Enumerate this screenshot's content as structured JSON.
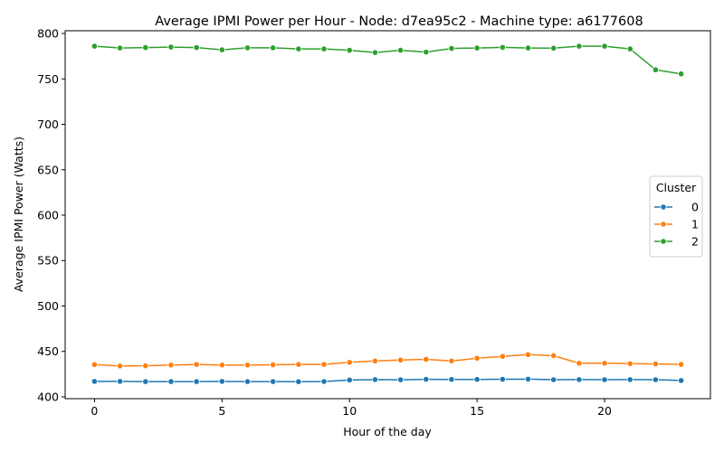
{
  "chart_data": {
    "type": "line",
    "title": "Average IPMI Power per Hour - Node: d7ea95c2 - Machine type: a6177608",
    "xlabel": "Hour of the day",
    "ylabel": "Average IPMI Power (Watts)",
    "xlim": [
      -1.15,
      24.15
    ],
    "ylim": [
      398,
      803
    ],
    "xticks": [
      0,
      5,
      10,
      15,
      20
    ],
    "yticks": [
      400,
      450,
      500,
      550,
      600,
      650,
      700,
      750,
      800
    ],
    "grid": false,
    "legend": {
      "title": "Cluster",
      "placement": "center-right"
    },
    "x": [
      0,
      1,
      2,
      3,
      4,
      5,
      6,
      7,
      8,
      9,
      10,
      11,
      12,
      13,
      14,
      15,
      16,
      17,
      18,
      19,
      20,
      21,
      22,
      23
    ],
    "series": [
      {
        "name": "0",
        "color": "#1f77b4",
        "values": [
          417,
          417,
          416.8,
          416.8,
          416.8,
          417,
          416.8,
          416.8,
          416.7,
          416.9,
          418.5,
          419,
          418.8,
          419.3,
          419.2,
          419.2,
          419.4,
          419.5,
          418.9,
          419,
          418.9,
          419,
          418.9,
          418
        ]
      },
      {
        "name": "1",
        "color": "#ff7f0e",
        "values": [
          435.5,
          434,
          434.2,
          435,
          435.7,
          435,
          435,
          435.3,
          435.7,
          435.7,
          438,
          439.5,
          440.5,
          441.3,
          439.5,
          442.5,
          444.5,
          446.5,
          445.3,
          437,
          437,
          436.5,
          436.2,
          435.7
        ]
      },
      {
        "name": "2",
        "color": "#2ca02c",
        "values": [
          786,
          784,
          784.5,
          785,
          784.5,
          782,
          784.2,
          784.2,
          783,
          783,
          781.5,
          779,
          781.5,
          779.5,
          783.5,
          784,
          784.7,
          784,
          783.8,
          786,
          786,
          783,
          760,
          755.5
        ]
      }
    ]
  }
}
